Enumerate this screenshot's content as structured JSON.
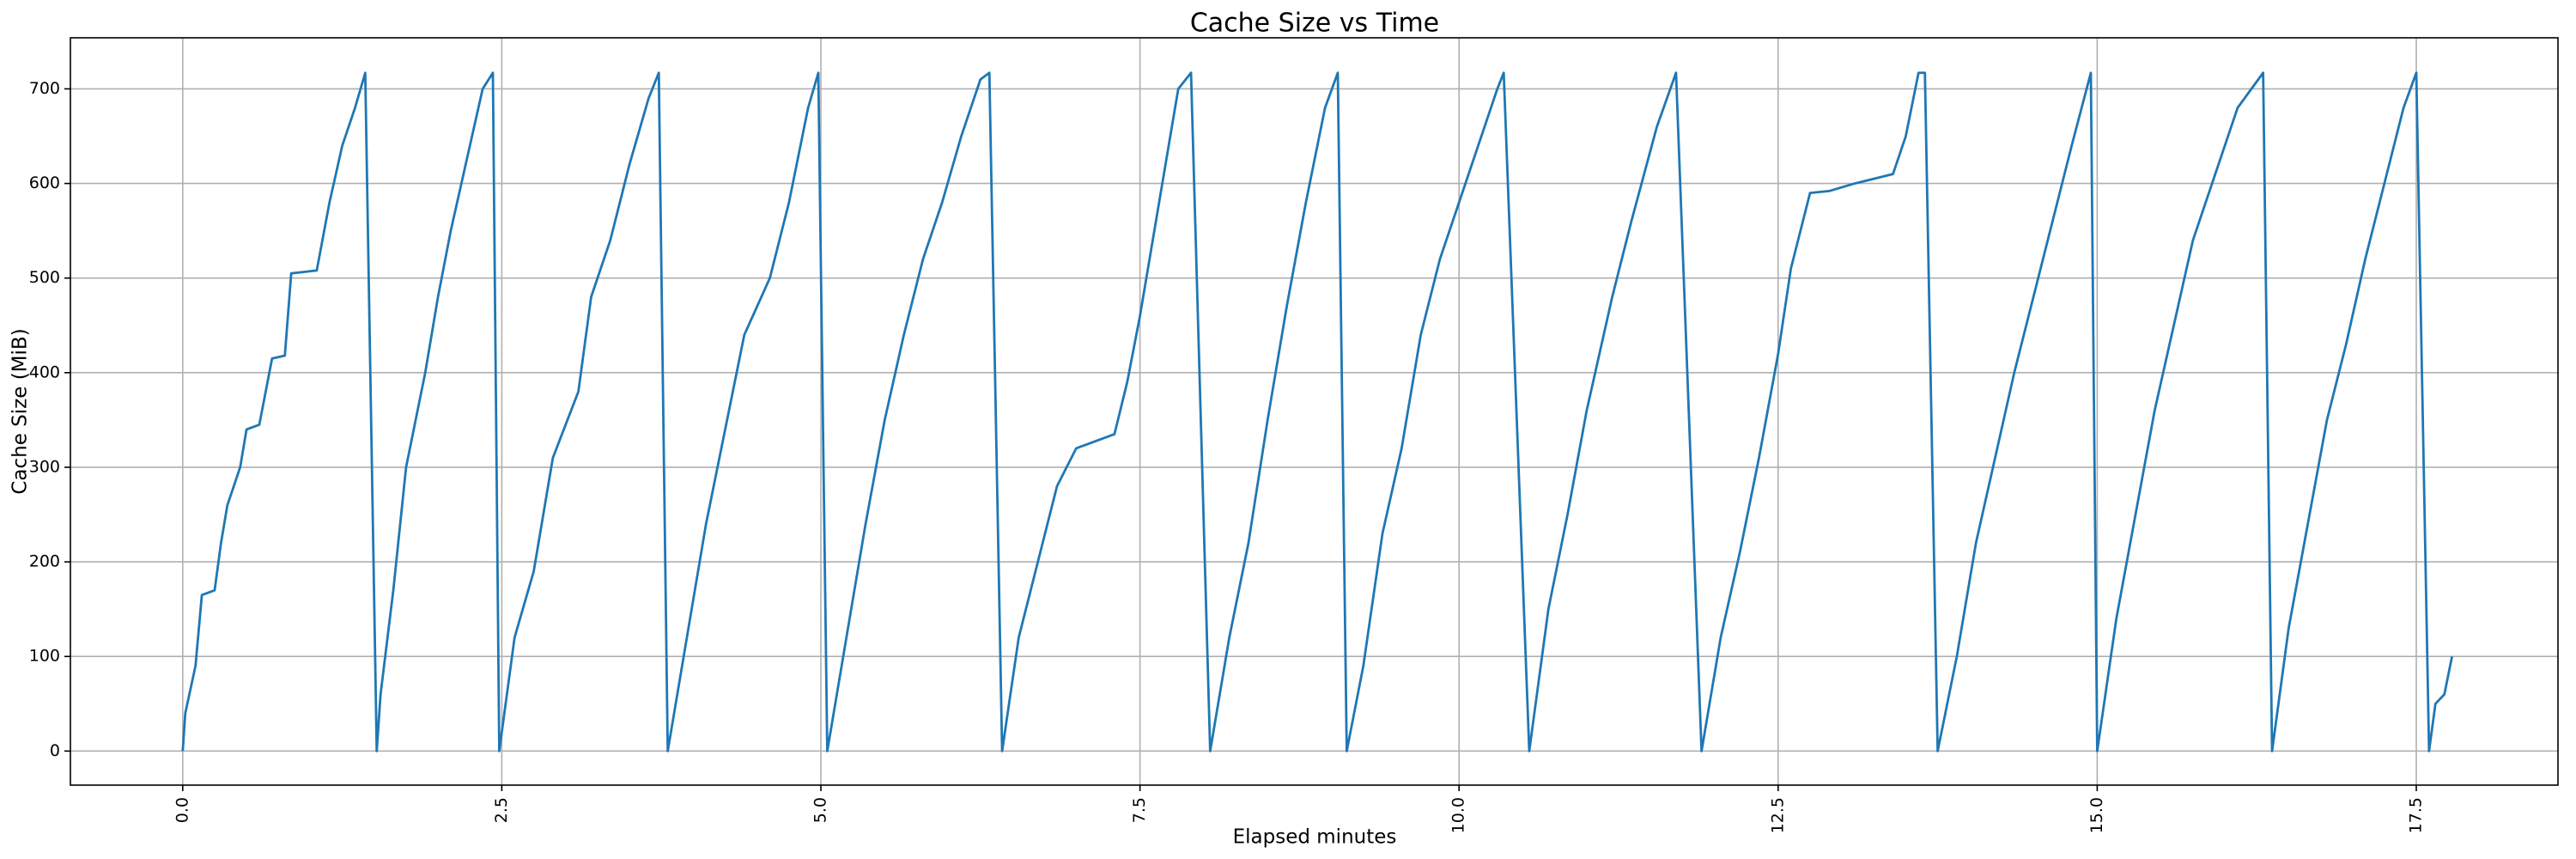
{
  "chart_data": {
    "type": "line",
    "title": "Cache Size vs Time",
    "x_label": "Elapsed minutes",
    "y_label": "Cache Size (MiB)",
    "color": "#1f77b4",
    "grid": true,
    "xlim": [
      -0.88,
      18.61
    ],
    "ylim": [
      -36,
      754
    ],
    "xticks": [
      {
        "value": 0,
        "label": "0.0"
      },
      {
        "value": 2.5,
        "label": "2.5"
      },
      {
        "value": 5,
        "label": "5.0"
      },
      {
        "value": 7.5,
        "label": "7.5"
      },
      {
        "value": 10,
        "label": "10.0"
      },
      {
        "value": 12.5,
        "label": "12.5"
      },
      {
        "value": 15,
        "label": "15.0"
      },
      {
        "value": 17.5,
        "label": "17.5"
      }
    ],
    "yticks": [
      0,
      100,
      200,
      300,
      400,
      500,
      600,
      700
    ],
    "x": [
      0,
      0.02,
      0.1,
      0.15,
      0.25,
      0.3,
      0.35,
      0.45,
      0.5,
      0.6,
      0.7,
      0.8,
      0.85,
      1.05,
      1.15,
      1.25,
      1.35,
      1.43,
      1.52,
      1.55,
      1.65,
      1.75,
      1.9,
      2.0,
      2.1,
      2.25,
      2.35,
      2.43,
      2.48,
      2.6,
      2.75,
      2.9,
      3.1,
      3.2,
      3.35,
      3.5,
      3.65,
      3.73,
      3.8,
      3.95,
      4.1,
      4.25,
      4.4,
      4.6,
      4.75,
      4.9,
      4.98,
      5.05,
      5.2,
      5.35,
      5.5,
      5.65,
      5.8,
      5.95,
      6.1,
      6.25,
      6.32,
      6.42,
      6.55,
      6.7,
      6.85,
      7.0,
      7.1,
      7.3,
      7.4,
      7.5,
      7.65,
      7.8,
      7.9,
      8.05,
      8.2,
      8.35,
      8.5,
      8.65,
      8.8,
      8.95,
      9.05,
      9.12,
      9.25,
      9.4,
      9.55,
      9.7,
      9.85,
      10.0,
      10.15,
      10.3,
      10.35,
      10.55,
      10.7,
      10.85,
      11.0,
      11.2,
      11.35,
      11.55,
      11.7,
      11.9,
      12.05,
      12.2,
      12.35,
      12.5,
      12.6,
      12.75,
      12.9,
      13.1,
      13.4,
      13.5,
      13.6,
      13.65,
      13.75,
      13.9,
      14.05,
      14.2,
      14.35,
      14.5,
      14.65,
      14.8,
      14.95,
      15.0,
      15.15,
      15.3,
      15.45,
      15.6,
      15.75,
      15.9,
      16.1,
      16.3,
      16.37,
      16.5,
      16.65,
      16.8,
      16.95,
      17.1,
      17.25,
      17.4,
      17.5,
      17.6,
      17.65,
      17.72,
      17.78
    ],
    "values": [
      0,
      40,
      90,
      165,
      170,
      220,
      260,
      300,
      340,
      345,
      415,
      418,
      505,
      508,
      580,
      640,
      680,
      717,
      0,
      60,
      170,
      300,
      400,
      480,
      550,
      640,
      700,
      717,
      0,
      120,
      190,
      310,
      380,
      480,
      540,
      620,
      690,
      717,
      0,
      120,
      240,
      340,
      440,
      500,
      580,
      680,
      717,
      0,
      120,
      240,
      350,
      440,
      520,
      580,
      650,
      710,
      717,
      0,
      120,
      200,
      280,
      320,
      325,
      335,
      390,
      460,
      580,
      700,
      717,
      0,
      120,
      220,
      350,
      470,
      580,
      680,
      717,
      0,
      90,
      230,
      320,
      440,
      520,
      580,
      640,
      700,
      717,
      0,
      150,
      250,
      360,
      480,
      560,
      660,
      717,
      0,
      120,
      210,
      310,
      420,
      510,
      590,
      592,
      600,
      610,
      650,
      717,
      717,
      0,
      100,
      220,
      310,
      400,
      480,
      560,
      640,
      717,
      0,
      140,
      250,
      360,
      450,
      540,
      600,
      680,
      717,
      0,
      130,
      240,
      350,
      430,
      520,
      600,
      680,
      717,
      0,
      50,
      60,
      100
    ]
  }
}
